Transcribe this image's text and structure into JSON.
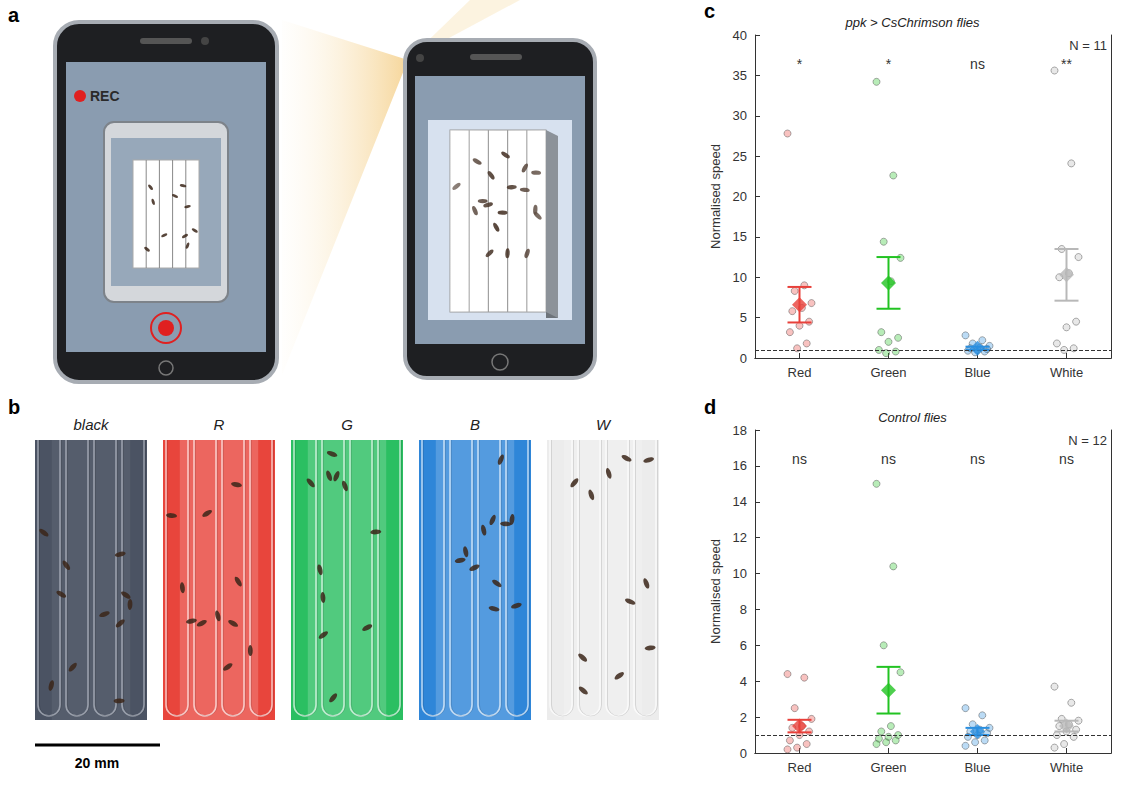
{
  "figure": {
    "a": {
      "label": "a",
      "record_text": "REC"
    },
    "b": {
      "label": "b",
      "swatches": [
        {
          "label": "black",
          "color": "#4b5363"
        },
        {
          "label": "R",
          "color": "#e8453c"
        },
        {
          "label": "G",
          "color": "#2bbf62"
        },
        {
          "label": "B",
          "color": "#2f86d8"
        },
        {
          "label": "W",
          "color": "#ececec"
        }
      ],
      "scale_bar": "20 mm"
    }
  },
  "chart_data": [
    {
      "panel_label": "c",
      "type": "scatter",
      "title": "ppk > CsChrimson flies",
      "annotation": "N = 11",
      "y_label": "Normalised speed",
      "categories": [
        "Red",
        "Green",
        "Blue",
        "White"
      ],
      "colors": [
        "#e8403a",
        "#22c322",
        "#2a8fe0",
        "#b8b8b8"
      ],
      "points": [
        [
          27.8,
          9.0,
          8.3,
          6.8,
          6.2,
          5.8,
          4.5,
          4.0,
          3.2,
          1.8,
          1.2
        ],
        [
          34.2,
          22.6,
          14.4,
          12.4,
          9.5,
          3.2,
          2.5,
          2.0,
          1.0,
          0.8,
          0.6
        ],
        [
          2.8,
          2.2,
          1.8,
          1.5,
          1.3,
          1.2,
          1.1,
          1.0,
          0.9,
          0.8,
          0.7
        ],
        [
          35.6,
          24.1,
          13.5,
          12.5,
          10.5,
          10.0,
          4.5,
          3.8,
          1.8,
          1.2,
          1.0
        ]
      ],
      "means": [
        6.6,
        9.3,
        1.2,
        10.3
      ],
      "errors": [
        2.2,
        3.2,
        0.2,
        3.2
      ],
      "significance": [
        "*",
        "*",
        "ns",
        "**"
      ],
      "baseline": 1,
      "ylim": [
        0,
        40
      ],
      "yticks": [
        0,
        5,
        10,
        15,
        20,
        25,
        30,
        35,
        40
      ],
      "grid": false
    },
    {
      "panel_label": "d",
      "type": "scatter",
      "title": "Control flies",
      "annotation": "N = 12",
      "y_label": "Normalised speed",
      "categories": [
        "Red",
        "Green",
        "Blue",
        "White"
      ],
      "colors": [
        "#e8403a",
        "#22c322",
        "#2a8fe0",
        "#b8b8b8"
      ],
      "points": [
        [
          4.4,
          4.2,
          2.5,
          1.9,
          1.5,
          1.4,
          1.2,
          1.0,
          0.7,
          0.5,
          0.3,
          0.2
        ],
        [
          15.0,
          10.4,
          6.0,
          4.5,
          1.5,
          1.2,
          1.0,
          0.9,
          0.8,
          0.7,
          0.6,
          0.5
        ],
        [
          2.5,
          2.1,
          1.6,
          1.4,
          1.3,
          1.2,
          1.1,
          1.0,
          0.9,
          0.7,
          0.6,
          0.4
        ],
        [
          3.7,
          2.8,
          1.9,
          1.8,
          1.6,
          1.5,
          1.3,
          1.2,
          1.0,
          0.9,
          0.5,
          0.3
        ]
      ],
      "means": [
        1.5,
        3.5,
        1.2,
        1.5
      ],
      "errors": [
        0.35,
        1.3,
        0.2,
        0.3
      ],
      "significance": [
        "ns",
        "ns",
        "ns",
        "ns"
      ],
      "baseline": 1,
      "ylim": [
        0,
        18
      ],
      "yticks": [
        0,
        2,
        4,
        6,
        8,
        10,
        12,
        14,
        16,
        18
      ],
      "grid": false
    }
  ]
}
